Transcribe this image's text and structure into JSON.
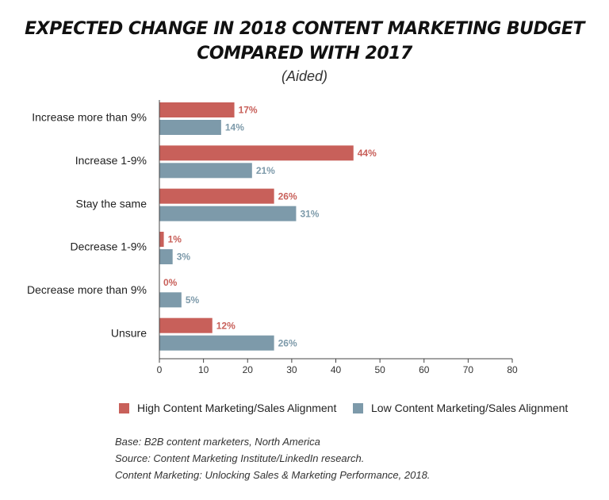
{
  "title_line1": "EXPECTED CHANGE IN 2018 CONTENT MARKETING BUDGET",
  "title_line2": "COMPARED WITH 2017",
  "subtitle": "(Aided)",
  "colors": {
    "high": "#c8605a",
    "low": "#7d9aaa",
    "axis": "#444444"
  },
  "legend": {
    "high": "High Content Marketing/Sales Alignment",
    "low": "Low Content Marketing/Sales Alignment"
  },
  "footnotes": [
    "Base: B2B content marketers, North America",
    "Source: Content Marketing Institute/LinkedIn research.",
    "Content Marketing: Unlocking Sales & Marketing Performance, 2018."
  ],
  "chart_data": {
    "type": "bar",
    "orientation": "horizontal",
    "categories": [
      "Increase more than 9%",
      "Increase 1-9%",
      "Stay the same",
      "Decrease 1-9%",
      "Decrease more than 9%",
      "Unsure"
    ],
    "series": [
      {
        "name": "High Content Marketing/Sales Alignment",
        "values": [
          17,
          44,
          26,
          1,
          0,
          12
        ],
        "labels": [
          "17%",
          "44%",
          "26%",
          "1%",
          "0%",
          "12%"
        ]
      },
      {
        "name": "Low Content Marketing/Sales Alignment",
        "values": [
          14,
          21,
          31,
          3,
          5,
          26
        ],
        "labels": [
          "14%",
          "21%",
          "31%",
          "3%",
          "5%",
          "26%"
        ]
      }
    ],
    "xlim": [
      0,
      80
    ],
    "xticks": [
      "0",
      "10",
      "20",
      "30",
      "40",
      "50",
      "60",
      "70",
      "80"
    ],
    "grid": false,
    "legend_position": "bottom"
  }
}
